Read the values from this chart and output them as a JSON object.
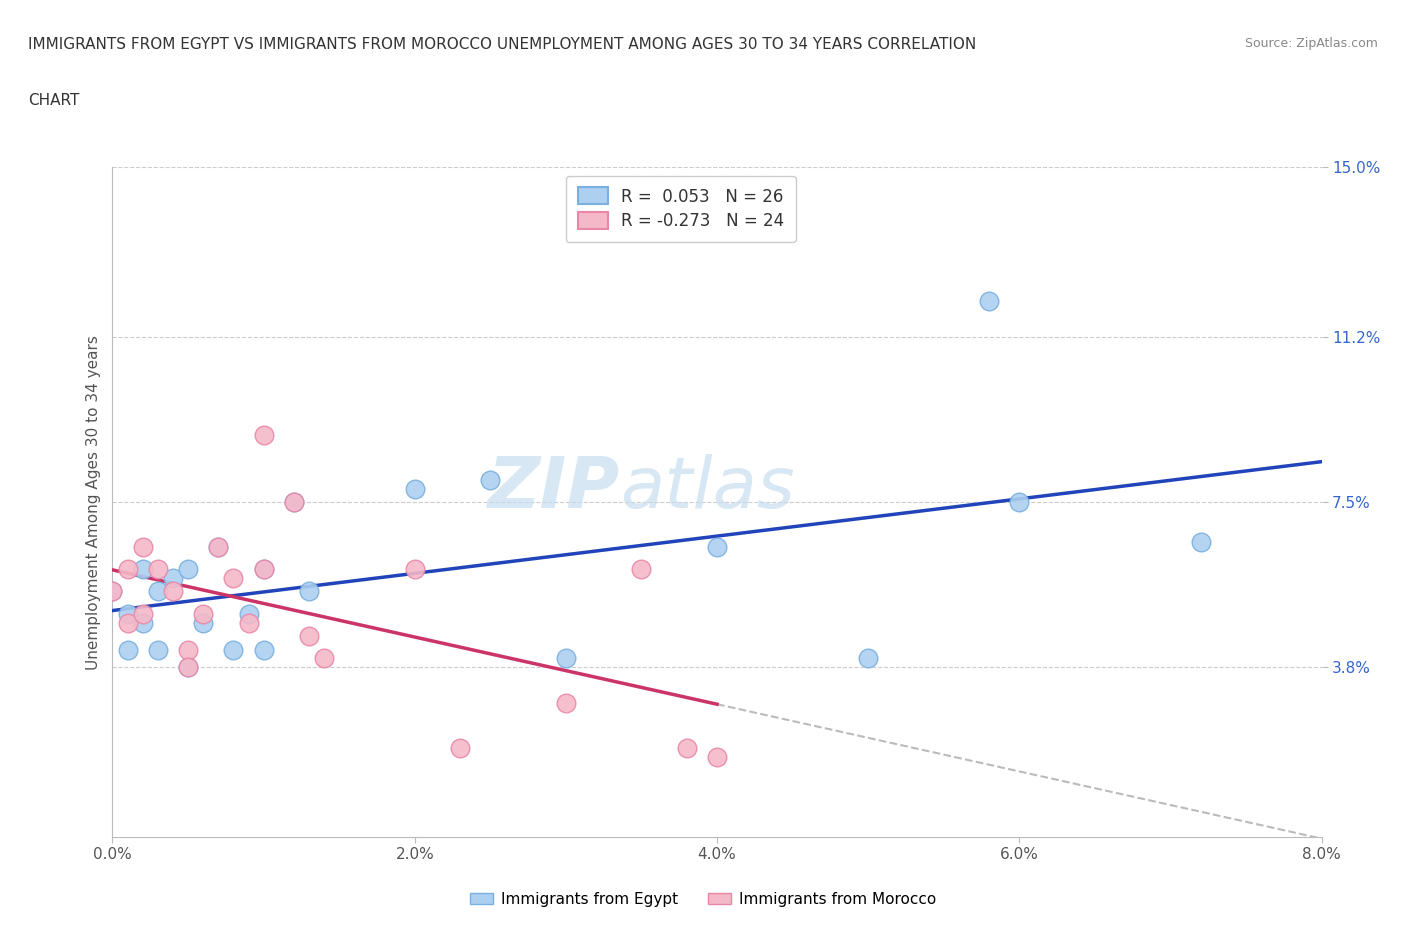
{
  "title_line1": "IMMIGRANTS FROM EGYPT VS IMMIGRANTS FROM MOROCCO UNEMPLOYMENT AMONG AGES 30 TO 34 YEARS CORRELATION",
  "title_line2": "CHART",
  "source_text": "Source: ZipAtlas.com",
  "ylabel": "Unemployment Among Ages 30 to 34 years",
  "xlim": [
    0.0,
    0.08
  ],
  "ylim": [
    0.0,
    0.15
  ],
  "xtick_labels": [
    "0.0%",
    "2.0%",
    "4.0%",
    "6.0%",
    "8.0%"
  ],
  "xtick_vals": [
    0.0,
    0.02,
    0.04,
    0.06,
    0.08
  ],
  "ytick_labels": [
    "3.8%",
    "7.5%",
    "11.2%",
    "15.0%"
  ],
  "ytick_vals": [
    0.038,
    0.075,
    0.112,
    0.15
  ],
  "egypt_color": "#add0f0",
  "egypt_edge_color": "#7ab0e0",
  "morocco_color": "#f5b8c8",
  "morocco_edge_color": "#e888a8",
  "egypt_R": 0.053,
  "egypt_N": 26,
  "morocco_R": -0.273,
  "morocco_N": 24,
  "egypt_line_color": "#2244bb",
  "morocco_line_color": "#cc3366",
  "watermark_color": "#d8e8f5",
  "egypt_x": [
    0.0,
    0.001,
    0.001,
    0.002,
    0.002,
    0.003,
    0.003,
    0.004,
    0.005,
    0.005,
    0.006,
    0.007,
    0.008,
    0.009,
    0.01,
    0.01,
    0.012,
    0.013,
    0.02,
    0.025,
    0.03,
    0.04,
    0.05,
    0.058,
    0.06,
    0.072
  ],
  "egypt_y": [
    0.055,
    0.05,
    0.042,
    0.06,
    0.048,
    0.055,
    0.042,
    0.058,
    0.06,
    0.038,
    0.048,
    0.065,
    0.042,
    0.05,
    0.06,
    0.042,
    0.075,
    0.055,
    0.078,
    0.08,
    0.04,
    0.065,
    0.04,
    0.12,
    0.075,
    0.066
  ],
  "morocco_x": [
    0.0,
    0.001,
    0.001,
    0.002,
    0.002,
    0.003,
    0.004,
    0.005,
    0.005,
    0.006,
    0.007,
    0.008,
    0.009,
    0.01,
    0.01,
    0.012,
    0.013,
    0.014,
    0.02,
    0.023,
    0.03,
    0.035,
    0.038,
    0.04
  ],
  "morocco_y": [
    0.055,
    0.06,
    0.048,
    0.065,
    0.05,
    0.06,
    0.055,
    0.042,
    0.038,
    0.05,
    0.065,
    0.058,
    0.048,
    0.06,
    0.09,
    0.075,
    0.045,
    0.04,
    0.06,
    0.02,
    0.03,
    0.06,
    0.02,
    0.018
  ]
}
